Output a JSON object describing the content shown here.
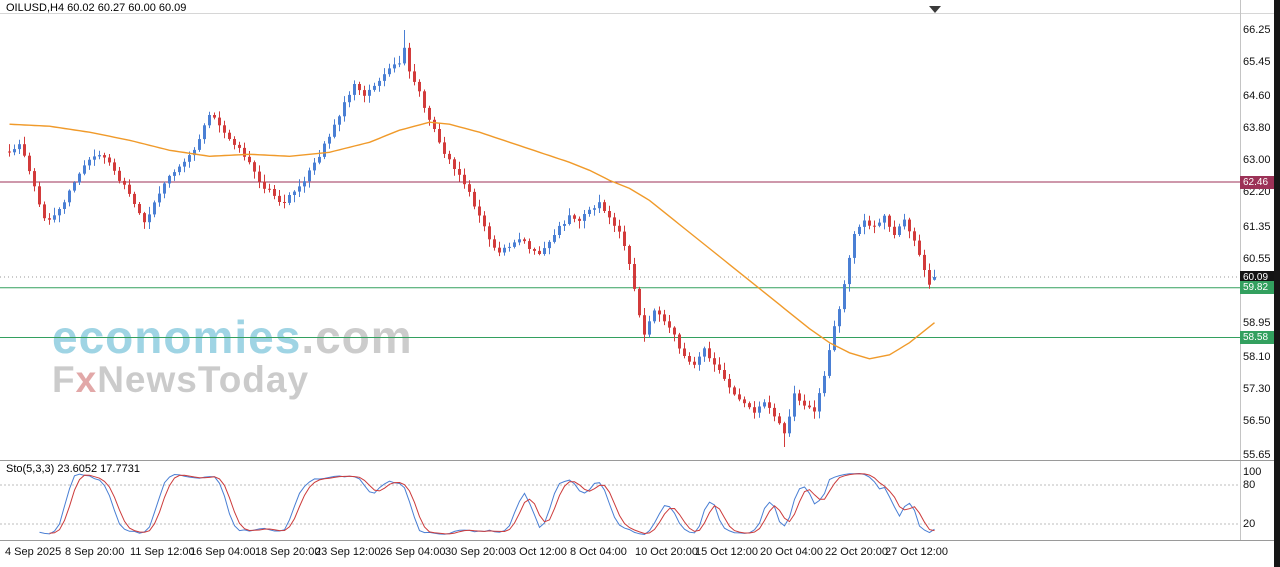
{
  "header": {
    "symbol_line": "OILUSD,H4 60.02 60.27 60.00 60.09"
  },
  "watermark": {
    "brand": "economies",
    "suffix": ".com",
    "sub_f": "F",
    "sub_x": "x",
    "sub_rest": "NewsToday",
    "brand_color": "#9fd4e4",
    "suffix_color": "#cccccc",
    "sub_color": "#cbcbcb",
    "x_color": "#e2a8a8"
  },
  "indicator": {
    "label": "Sto(5,3,3) 23.6052 17.7731",
    "scale_labels": [
      "100",
      "80",
      "20"
    ],
    "scale_values": [
      100,
      80,
      20
    ],
    "dashed_levels": [
      80,
      20
    ],
    "main_color": "#4a7fd4",
    "signal_color": "#cc3b3b"
  },
  "chart_data": {
    "type": "candlestick",
    "symbol": "OILUSD",
    "timeframe": "H4",
    "title": "OILUSD,H4",
    "ohlc_display": {
      "open": 60.02,
      "high": 60.27,
      "low": 60.0,
      "close": 60.09
    },
    "ylim": [
      55.65,
      66.25
    ],
    "grid": false,
    "y_ticks": [
      "66.25",
      "65.45",
      "64.60",
      "63.80",
      "63.00",
      "62.20",
      "61.35",
      "60.55",
      "59.75",
      "58.95",
      "58.10",
      "57.30",
      "56.50",
      "55.65"
    ],
    "y_tick_values": [
      66.25,
      65.45,
      64.6,
      63.8,
      63.0,
      62.2,
      61.35,
      60.55,
      59.75,
      58.95,
      58.1,
      57.3,
      56.5,
      55.65
    ],
    "x_labels": [
      {
        "t": "4 Sep 2025",
        "i": 0
      },
      {
        "t": "8 Sep 20:00",
        "i": 12
      },
      {
        "t": "11 Sep 12:00",
        "i": 25
      },
      {
        "t": "16 Sep 04:00",
        "i": 37
      },
      {
        "t": "18 Sep 20:00",
        "i": 50
      },
      {
        "t": "23 Sep 12:00",
        "i": 62
      },
      {
        "t": "26 Sep 04:00",
        "i": 75
      },
      {
        "t": "30 Sep 20:00",
        "i": 88
      },
      {
        "t": "3 Oct 12:00",
        "i": 101
      },
      {
        "t": "8 Oct 04:00",
        "i": 113
      },
      {
        "t": "10 Oct 20:00",
        "i": 126
      },
      {
        "t": "15 Oct 12:00",
        "i": 138
      },
      {
        "t": "20 Oct 04:00",
        "i": 151
      },
      {
        "t": "22 Oct 20:00",
        "i": 164
      },
      {
        "t": "27 Oct 12:00",
        "i": 176
      }
    ],
    "levels": [
      {
        "price": 62.46,
        "label": "62.46",
        "color": "#9c3257"
      },
      {
        "price": 59.82,
        "label": "59.82",
        "color": "#33a05f"
      },
      {
        "price": 58.58,
        "label": "58.58",
        "color": "#33a05f"
      }
    ],
    "current_price": {
      "price": 60.09,
      "label": "60.09",
      "color": "#141414"
    },
    "up_color": "#4a7fd4",
    "down_color": "#d23b3b",
    "ma_color": "#f09a2a",
    "candle_count": 186,
    "close_path": [
      [
        0,
        63.2
      ],
      [
        2,
        63.45
      ],
      [
        4,
        62.8
      ],
      [
        5,
        62.3
      ],
      [
        7,
        61.6
      ],
      [
        8,
        61.45
      ],
      [
        10,
        61.75
      ],
      [
        13,
        62.5
      ],
      [
        16,
        63.0
      ],
      [
        18,
        63.15
      ],
      [
        20,
        62.9
      ],
      [
        22,
        62.55
      ],
      [
        24,
        62.2
      ],
      [
        26,
        61.7
      ],
      [
        27,
        61.45
      ],
      [
        29,
        61.9
      ],
      [
        32,
        62.6
      ],
      [
        35,
        62.9
      ],
      [
        38,
        63.5
      ],
      [
        40,
        64.15
      ],
      [
        42,
        63.85
      ],
      [
        45,
        63.45
      ],
      [
        48,
        62.9
      ],
      [
        51,
        62.35
      ],
      [
        53,
        62.1
      ],
      [
        55,
        61.95
      ],
      [
        58,
        62.3
      ],
      [
        61,
        62.9
      ],
      [
        64,
        63.6
      ],
      [
        67,
        64.4
      ],
      [
        69,
        64.9
      ],
      [
        71,
        64.55
      ],
      [
        73,
        64.9
      ],
      [
        76,
        65.3
      ],
      [
        78,
        65.45
      ],
      [
        79,
        65.85
      ],
      [
        80,
        65.25
      ],
      [
        82,
        64.7
      ],
      [
        84,
        64.05
      ],
      [
        86,
        63.4
      ],
      [
        88,
        63.0
      ],
      [
        90,
        62.6
      ],
      [
        92,
        62.2
      ],
      [
        94,
        61.6
      ],
      [
        96,
        61.05
      ],
      [
        98,
        60.65
      ],
      [
        100,
        60.85
      ],
      [
        102,
        61.1
      ],
      [
        104,
        60.8
      ],
      [
        106,
        60.6
      ],
      [
        108,
        61.0
      ],
      [
        110,
        61.3
      ],
      [
        112,
        61.6
      ],
      [
        114,
        61.5
      ],
      [
        116,
        61.7
      ],
      [
        118,
        61.9
      ],
      [
        120,
        61.6
      ],
      [
        122,
        61.2
      ],
      [
        124,
        60.4
      ],
      [
        126,
        59.2
      ],
      [
        127,
        58.7
      ],
      [
        129,
        59.3
      ],
      [
        131,
        59.0
      ],
      [
        133,
        58.6
      ],
      [
        135,
        58.1
      ],
      [
        137,
        57.9
      ],
      [
        139,
        58.35
      ],
      [
        141,
        57.9
      ],
      [
        143,
        57.6
      ],
      [
        145,
        57.2
      ],
      [
        147,
        56.9
      ],
      [
        149,
        56.7
      ],
      [
        151,
        57.0
      ],
      [
        153,
        56.6
      ],
      [
        155,
        56.15
      ],
      [
        157,
        57.2
      ],
      [
        159,
        56.9
      ],
      [
        161,
        56.7
      ],
      [
        163,
        57.6
      ],
      [
        164,
        58.3
      ],
      [
        166,
        59.3
      ],
      [
        168,
        60.6
      ],
      [
        169,
        61.2
      ],
      [
        171,
        61.5
      ],
      [
        173,
        61.3
      ],
      [
        175,
        61.6
      ],
      [
        177,
        61.2
      ],
      [
        179,
        61.5
      ],
      [
        181,
        61.05
      ],
      [
        182,
        60.6
      ],
      [
        184,
        59.95
      ],
      [
        185,
        60.09
      ]
    ],
    "high_spike": [
      79,
      66.25
    ],
    "low_spike": [
      155,
      55.85
    ],
    "ma_path": [
      [
        0,
        63.9
      ],
      [
        8,
        63.85
      ],
      [
        16,
        63.7
      ],
      [
        24,
        63.5
      ],
      [
        32,
        63.25
      ],
      [
        40,
        63.1
      ],
      [
        48,
        63.15
      ],
      [
        56,
        63.1
      ],
      [
        64,
        63.2
      ],
      [
        72,
        63.45
      ],
      [
        78,
        63.75
      ],
      [
        84,
        63.95
      ],
      [
        88,
        63.9
      ],
      [
        94,
        63.7
      ],
      [
        100,
        63.45
      ],
      [
        106,
        63.2
      ],
      [
        112,
        62.95
      ],
      [
        116,
        62.75
      ],
      [
        120,
        62.5
      ],
      [
        124,
        62.3
      ],
      [
        128,
        62.0
      ],
      [
        132,
        61.6
      ],
      [
        136,
        61.2
      ],
      [
        140,
        60.8
      ],
      [
        144,
        60.4
      ],
      [
        148,
        60.0
      ],
      [
        152,
        59.6
      ],
      [
        156,
        59.2
      ],
      [
        160,
        58.8
      ],
      [
        164,
        58.45
      ],
      [
        168,
        58.2
      ],
      [
        172,
        58.05
      ],
      [
        176,
        58.15
      ],
      [
        180,
        58.45
      ],
      [
        183,
        58.75
      ],
      [
        185,
        58.95
      ]
    ],
    "stoch": {
      "period": 5,
      "k_smooth": 3,
      "d_smooth": 3,
      "last_k": "23.6052",
      "last_d": "17.7731"
    }
  }
}
